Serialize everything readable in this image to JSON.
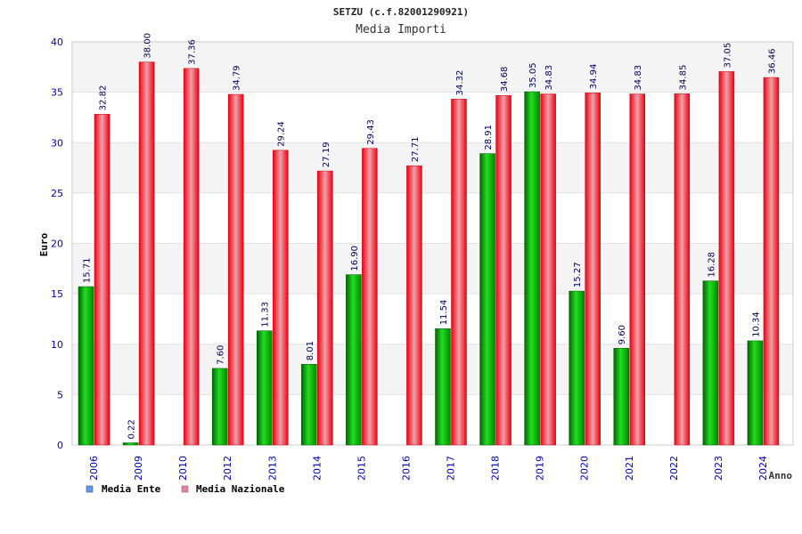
{
  "chart_data": {
    "type": "bar",
    "title": "SETZU (c.f.82001290921)",
    "subtitle": "Media Importi",
    "xlabel": "Anno",
    "ylabel": "Euro",
    "ylim": [
      0,
      40
    ],
    "yticks": [
      "0",
      "5",
      "10",
      "15",
      "20",
      "25",
      "30",
      "35",
      "40"
    ],
    "grid": true,
    "legend_position": "bottom-left",
    "categories": [
      "2006",
      "2009",
      "2010",
      "2012",
      "2013",
      "2014",
      "2015",
      "2016",
      "2017",
      "2018",
      "2019",
      "2020",
      "2021",
      "2022",
      "2023",
      "2024"
    ],
    "series": [
      {
        "name": "Media Ente",
        "color": "#00aa00",
        "legend_color": "#6699ee",
        "values": [
          15.71,
          0.22,
          null,
          7.6,
          11.33,
          8.01,
          16.9,
          null,
          11.54,
          28.91,
          35.05,
          15.27,
          9.6,
          null,
          16.28,
          10.34
        ],
        "labels": [
          "15.71",
          "0.22",
          "",
          "7.60",
          "11.33",
          "8.01",
          "16.90",
          "",
          "11.54",
          "28.91",
          "35.05",
          "15.27",
          "9.60",
          "",
          "16.28",
          "10.34"
        ]
      },
      {
        "name": "Media Nazionale",
        "color": "#ee1122",
        "legend_color": "#dd88aa",
        "values": [
          32.82,
          38.0,
          37.36,
          34.79,
          29.24,
          27.19,
          29.43,
          27.71,
          34.32,
          34.68,
          34.83,
          34.94,
          34.83,
          34.85,
          37.05,
          36.46
        ],
        "labels": [
          "32.82",
          "38.00",
          "37.36",
          "34.79",
          "29.24",
          "27.19",
          "29.43",
          "27.71",
          "34.32",
          "34.68",
          "34.83",
          "34.94",
          "34.83",
          "34.85",
          "37.05",
          "36.46"
        ]
      }
    ]
  }
}
